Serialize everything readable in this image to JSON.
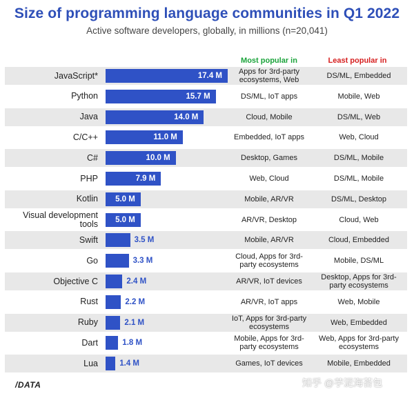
{
  "chart_data": {
    "type": "bar",
    "title": "Size of programming language communities in Q1 2022",
    "subtitle": "Active software developers, globally, in millions (n=20,041)",
    "column_headers": {
      "most": "Most popular in",
      "least": "Least popular in"
    },
    "categories": [
      "JavaScript*",
      "Python",
      "Java",
      "C/C++",
      "C#",
      "PHP",
      "Kotlin",
      "Visual development tools",
      "Swift",
      "Go",
      "Objective C",
      "Rust",
      "Ruby",
      "Dart",
      "Lua"
    ],
    "values": [
      17.4,
      15.7,
      14.0,
      11.0,
      10.0,
      7.9,
      5.0,
      5.0,
      3.5,
      3.3,
      2.4,
      2.2,
      2.1,
      1.8,
      1.4
    ],
    "value_labels": [
      "17.4 M",
      "15.7 M",
      "14.0 M",
      "11.0 M",
      "10.0 M",
      "7.9 M",
      "5.0 M",
      "5.0 M",
      "3.5 M",
      "3.3 M",
      "2.4 M",
      "2.2 M",
      "2.1 M",
      "1.8 M",
      "1.4 M"
    ],
    "most_popular_in": [
      "Apps for 3rd-party ecosystems, Web",
      "DS/ML, IoT apps",
      "Cloud, Mobile",
      "Embedded, IoT apps",
      "Desktop, Games",
      "Web, Cloud",
      "Mobile, AR/VR",
      "AR/VR, Desktop",
      "Mobile, AR/VR",
      "Cloud, Apps for 3rd-party ecosystems",
      "AR/VR, IoT devices",
      "AR/VR, IoT apps",
      "IoT, Apps for 3rd-party ecosystems",
      "Mobile, Apps for 3rd-party ecosystems",
      "Games, IoT devices"
    ],
    "least_popular_in": [
      "DS/ML, Embedded",
      "Mobile, Web",
      "DS/ML, Web",
      "Web, Cloud",
      "DS/ML, Mobile",
      "DS/ML, Mobile",
      "DS/ML, Desktop",
      "Cloud, Web",
      "Cloud, Embedded",
      "Mobile, DS/ML",
      "Desktop, Apps for 3rd-party ecosystems",
      "Web, Mobile",
      "Web, Embedded",
      "Web, Apps for 3rd-party ecosystems",
      "Mobile, Embedded"
    ],
    "xlim": [
      0,
      17.4
    ],
    "bar_color": "#2f52c6",
    "most_header_color": "#1aa33a",
    "least_header_color": "#d62020",
    "grid": false,
    "legend": "none"
  },
  "footer": {
    "logo": "/DATA",
    "watermark": "知乎 @芋泥海苔包"
  }
}
